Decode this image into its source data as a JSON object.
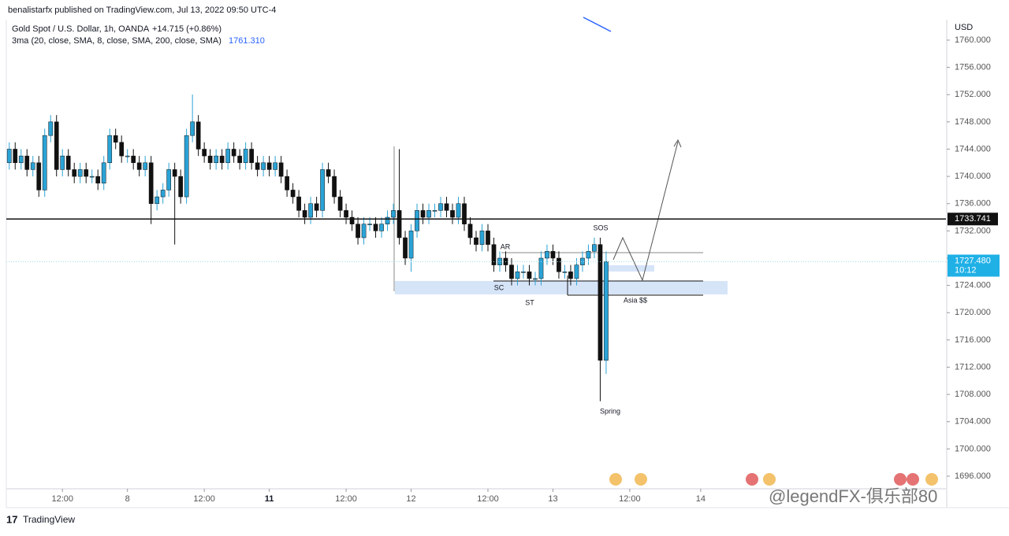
{
  "chart_data": {
    "type": "candlestick",
    "header": "benalistarfx published on TradingView.com, Jul 13, 2022 09:50 UTC-4",
    "title": "Gold Spot / U.S. Dollar, 1h, OANDA",
    "change": "+14.715 (+0.86%)",
    "indicator": "3ma (20, close, SMA, 8, close, SMA, 200, close, SMA)",
    "indicator_value": "1761.310",
    "currency": "USD",
    "brand": "TradingView",
    "watermark": "@legendFX-俱乐部80",
    "up_color": "#2aa3d6",
    "down_color": "#111111",
    "open": [
      1742,
      1744,
      1742,
      1743,
      1741,
      1742,
      1738,
      1746,
      1748,
      1741,
      1743,
      1741,
      1740,
      1741,
      1740,
      1740,
      1739,
      1742,
      1746,
      1745,
      1743,
      1743,
      1742,
      1741,
      1742,
      1736,
      1737,
      1738,
      1741,
      1740,
      1737,
      1746,
      1748,
      1744,
      1743,
      1742,
      1743,
      1742,
      1744,
      1743,
      1742,
      1744,
      1742,
      1741,
      1742,
      1741,
      1742,
      1740,
      1738,
      1737,
      1735,
      1734,
      1736,
      1735,
      1741,
      1740,
      1737,
      1735,
      1734,
      1733,
      1731,
      1733,
      1733,
      1732,
      1733,
      1734,
      1735,
      1731,
      1728,
      1732,
      1735,
      1734,
      1735,
      1735,
      1736,
      1735,
      1734,
      1736,
      1733,
      1731,
      1730,
      1732,
      1730,
      1727,
      1728,
      1727,
      1725,
      1726,
      1726,
      1725,
      1725,
      1728,
      1729,
      1728,
      1726,
      1726,
      1725,
      1727,
      1728,
      1729,
      1730,
      1713
    ],
    "high": [
      1745,
      1745,
      1744,
      1744,
      1743,
      1743,
      1747,
      1749,
      1749,
      1744,
      1744,
      1742,
      1742,
      1742,
      1741,
      1741,
      1743,
      1747,
      1747,
      1746,
      1744,
      1744,
      1743,
      1743,
      1743,
      1738,
      1739,
      1742,
      1742,
      1741,
      1747,
      1752,
      1749,
      1745,
      1744,
      1744,
      1744,
      1745,
      1745,
      1744,
      1745,
      1745,
      1743,
      1743,
      1743,
      1743,
      1743,
      1741,
      1739,
      1738,
      1736,
      1737,
      1737,
      1742,
      1742,
      1741,
      1738,
      1736,
      1735,
      1734,
      1734,
      1734,
      1734,
      1734,
      1735,
      1736,
      1744,
      1732,
      1733,
      1736,
      1736,
      1736,
      1736,
      1737,
      1737,
      1736,
      1737,
      1737,
      1734,
      1732,
      1733,
      1733,
      1731,
      1729,
      1729,
      1728,
      1727,
      1727,
      1727,
      1726,
      1729,
      1730,
      1730,
      1729,
      1727,
      1727,
      1728,
      1729,
      1730,
      1731,
      1731,
      1729
    ],
    "low": [
      1741,
      1741,
      1741,
      1740,
      1740,
      1737,
      1737,
      1745,
      1740,
      1740,
      1740,
      1739,
      1739,
      1739,
      1739,
      1738,
      1738,
      1741,
      1744,
      1742,
      1742,
      1741,
      1740,
      1740,
      1733,
      1735,
      1736,
      1737,
      1730,
      1736,
      1736,
      1745,
      1743,
      1742,
      1741,
      1741,
      1741,
      1741,
      1742,
      1741,
      1741,
      1741,
      1740,
      1740,
      1740,
      1740,
      1739,
      1737,
      1736,
      1734,
      1733,
      1733,
      1734,
      1734,
      1739,
      1736,
      1734,
      1733,
      1732,
      1730,
      1730,
      1732,
      1731,
      1731,
      1732,
      1733,
      1730,
      1727,
      1726,
      1731,
      1733,
      1733,
      1734,
      1734,
      1734,
      1733,
      1733,
      1732,
      1730,
      1729,
      1729,
      1729,
      1726,
      1726,
      1726,
      1724,
      1724,
      1725,
      1724,
      1724,
      1724,
      1727,
      1727,
      1725,
      1725,
      1724,
      1724,
      1726,
      1727,
      1728,
      1707,
      1711
    ],
    "close": [
      1744,
      1742,
      1743,
      1741,
      1742,
      1738,
      1746,
      1748,
      1741,
      1743,
      1741,
      1740,
      1741,
      1740,
      1740,
      1739,
      1742,
      1746,
      1745,
      1743,
      1743,
      1742,
      1741,
      1742,
      1736,
      1737,
      1738,
      1741,
      1740,
      1737,
      1746,
      1748,
      1744,
      1743,
      1742,
      1743,
      1742,
      1744,
      1743,
      1742,
      1744,
      1742,
      1741,
      1742,
      1741,
      1742,
      1740,
      1738,
      1737,
      1735,
      1734,
      1736,
      1735,
      1741,
      1740,
      1737,
      1735,
      1734,
      1733,
      1731,
      1733,
      1733,
      1732,
      1733,
      1734,
      1735,
      1731,
      1728,
      1732,
      1735,
      1734,
      1735,
      1735,
      1736,
      1735,
      1734,
      1736,
      1733,
      1731,
      1730,
      1732,
      1730,
      1727,
      1728,
      1727,
      1725,
      1726,
      1726,
      1725,
      1725,
      1728,
      1729,
      1728,
      1726,
      1726,
      1725,
      1727,
      1728,
      1729,
      1730,
      1713,
      1727.5
    ],
    "xlim": [
      -0.5,
      158.5
    ],
    "xticks": [
      {
        "value": 9,
        "label": "12:00"
      },
      {
        "value": 20,
        "label": "8"
      },
      {
        "value": 33,
        "label": "12:00"
      },
      {
        "value": 44,
        "label": "11"
      },
      {
        "value": 57,
        "label": "12:00"
      },
      {
        "value": 68,
        "label": "12"
      },
      {
        "value": 81,
        "label": "12:00"
      },
      {
        "value": 92,
        "label": "13"
      },
      {
        "value": 105,
        "label": "12:00"
      },
      {
        "value": 117,
        "label": "14"
      }
    ],
    "ylim": [
      1694.15,
      1763
    ],
    "yticks": [
      {
        "value": 1696,
        "label": "1696.000"
      },
      {
        "value": 1700,
        "label": "1700.000"
      },
      {
        "value": 1704,
        "label": "1704.000"
      },
      {
        "value": 1708,
        "label": "1708.000"
      },
      {
        "value": 1712,
        "label": "1712.000"
      },
      {
        "value": 1716,
        "label": "1716.000"
      },
      {
        "value": 1720,
        "label": "1720.000"
      },
      {
        "value": 1724,
        "label": "1724.000"
      },
      {
        "value": 1728,
        "label": "1728.000"
      },
      {
        "value": 1732,
        "label": "1732.000"
      },
      {
        "value": 1736,
        "label": "1736.000"
      },
      {
        "value": 1740,
        "label": "1740.000"
      },
      {
        "value": 1744,
        "label": "1744.000"
      },
      {
        "value": 1748,
        "label": "1748.000"
      },
      {
        "value": 1752,
        "label": "1752.000"
      },
      {
        "value": 1756,
        "label": "1756.000"
      },
      {
        "value": 1760,
        "label": "1760.000"
      }
    ],
    "price_line": 1733.741,
    "last_price": {
      "value": 1727.48,
      "label": "1727.480"
    },
    "countdown": "10:12",
    "annotations": [
      "AR",
      "SOS",
      "SC",
      "ST",
      "Asia $$",
      "Spring"
    ]
  }
}
